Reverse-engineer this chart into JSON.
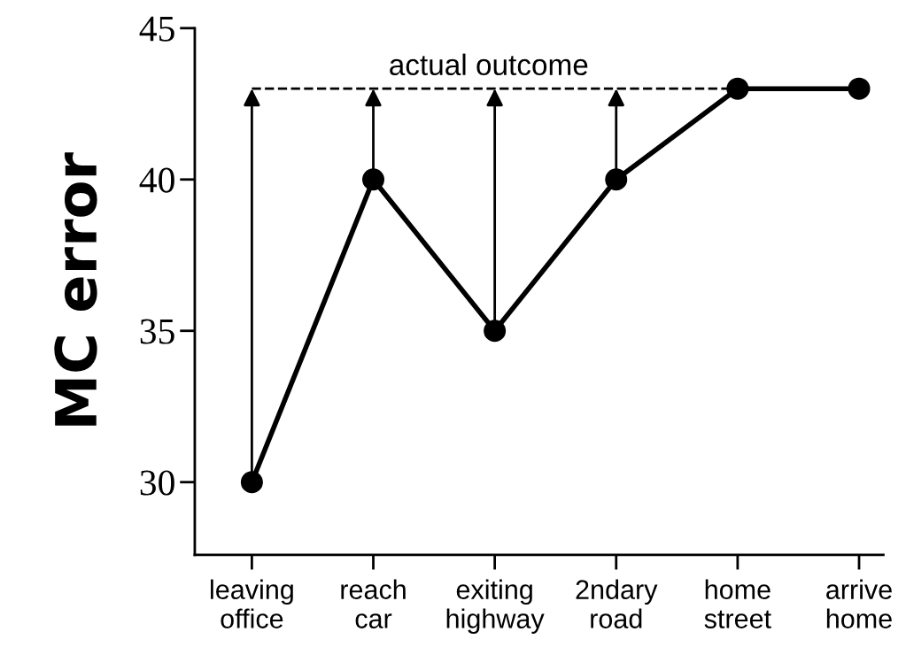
{
  "chart_data": {
    "type": "line",
    "ylabel": "MC error",
    "categories": [
      "leaving\noffice",
      "reach\ncar",
      "exiting\nhighway",
      "2ndary\nroad",
      "home\nstreet",
      "arrive\nhome"
    ],
    "series": [
      {
        "color": "#000000",
        "values": [
          30,
          40,
          35,
          40,
          43,
          43
        ]
      }
    ],
    "ylim": [
      27.6,
      45
    ],
    "yticks": [
      30,
      35,
      40,
      45
    ],
    "ref_lines": [
      {
        "axis": "y",
        "value": 43,
        "label": "actual outcome",
        "color": "#000000",
        "line_style": "dashed"
      }
    ],
    "marker": "circle",
    "line_style": "solid",
    "grid": false,
    "legend": false
  }
}
